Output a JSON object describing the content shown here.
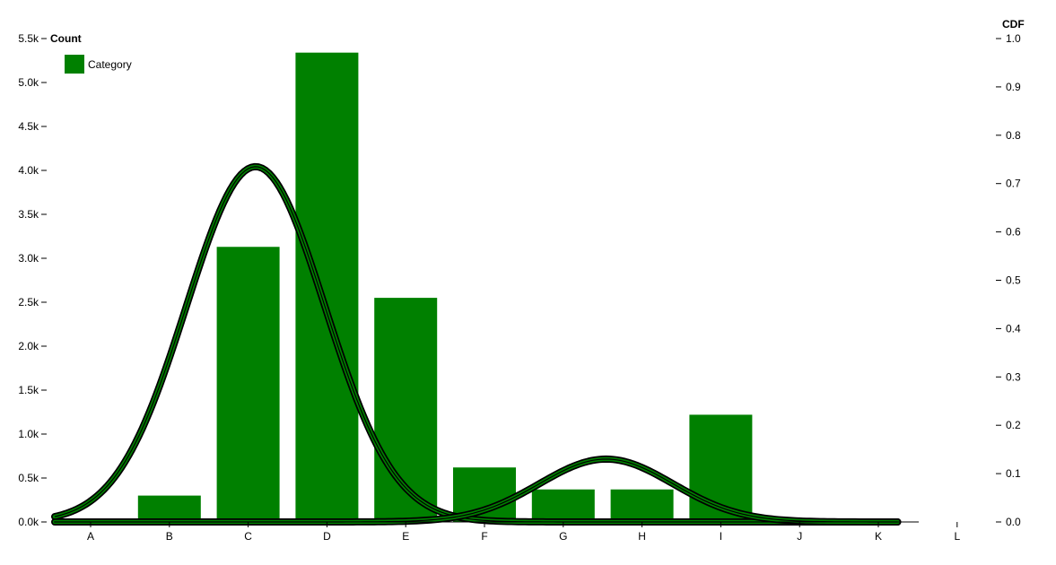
{
  "chart_data": {
    "type": "bar",
    "categories": [
      "A",
      "B",
      "C",
      "D",
      "E",
      "F",
      "G",
      "H",
      "I",
      "J",
      "K",
      "L"
    ],
    "values": [
      0,
      300,
      3130,
      5340,
      2550,
      620,
      370,
      370,
      1220,
      0,
      0,
      0
    ],
    "y_left": {
      "label": "Count",
      "ylim": [
        0,
        5500
      ],
      "ticks": [
        0,
        500,
        1000,
        1500,
        2000,
        2500,
        3000,
        3500,
        4000,
        4500,
        5000,
        5500
      ],
      "tick_labels": [
        "0.0k",
        "0.5k",
        "1.0k",
        "1.5k",
        "2.0k",
        "2.5k",
        "3.0k",
        "3.5k",
        "4.0k",
        "4.5k",
        "5.0k",
        "5.5k"
      ]
    },
    "y_right": {
      "label": "CDF",
      "ylim": [
        0,
        1.0
      ],
      "ticks": [
        0,
        0.1,
        0.2,
        0.3,
        0.4,
        0.5,
        0.6,
        0.7,
        0.8,
        0.9,
        1.0
      ],
      "tick_labels": [
        "0.0",
        "0.1",
        "0.2",
        "0.3",
        "0.4",
        "0.5",
        "0.6",
        "0.7",
        "0.8",
        "0.9",
        "1.0"
      ]
    },
    "curves": [
      {
        "peak_x": 2.55,
        "peak_y": 0.735,
        "sigma": 0.88,
        "start_x": 0,
        "end_x": 10.7
      },
      {
        "peak_x": 7.0,
        "peak_y": 0.13,
        "sigma": 0.85,
        "start_x": 0,
        "end_x": 10.7
      }
    ],
    "legend": {
      "entries": [
        "Category"
      ],
      "placement": "top-left"
    },
    "colors": {
      "bar": "#008000",
      "curve_fill": "#008000",
      "curve_outline": "#000000"
    },
    "grid": false
  }
}
